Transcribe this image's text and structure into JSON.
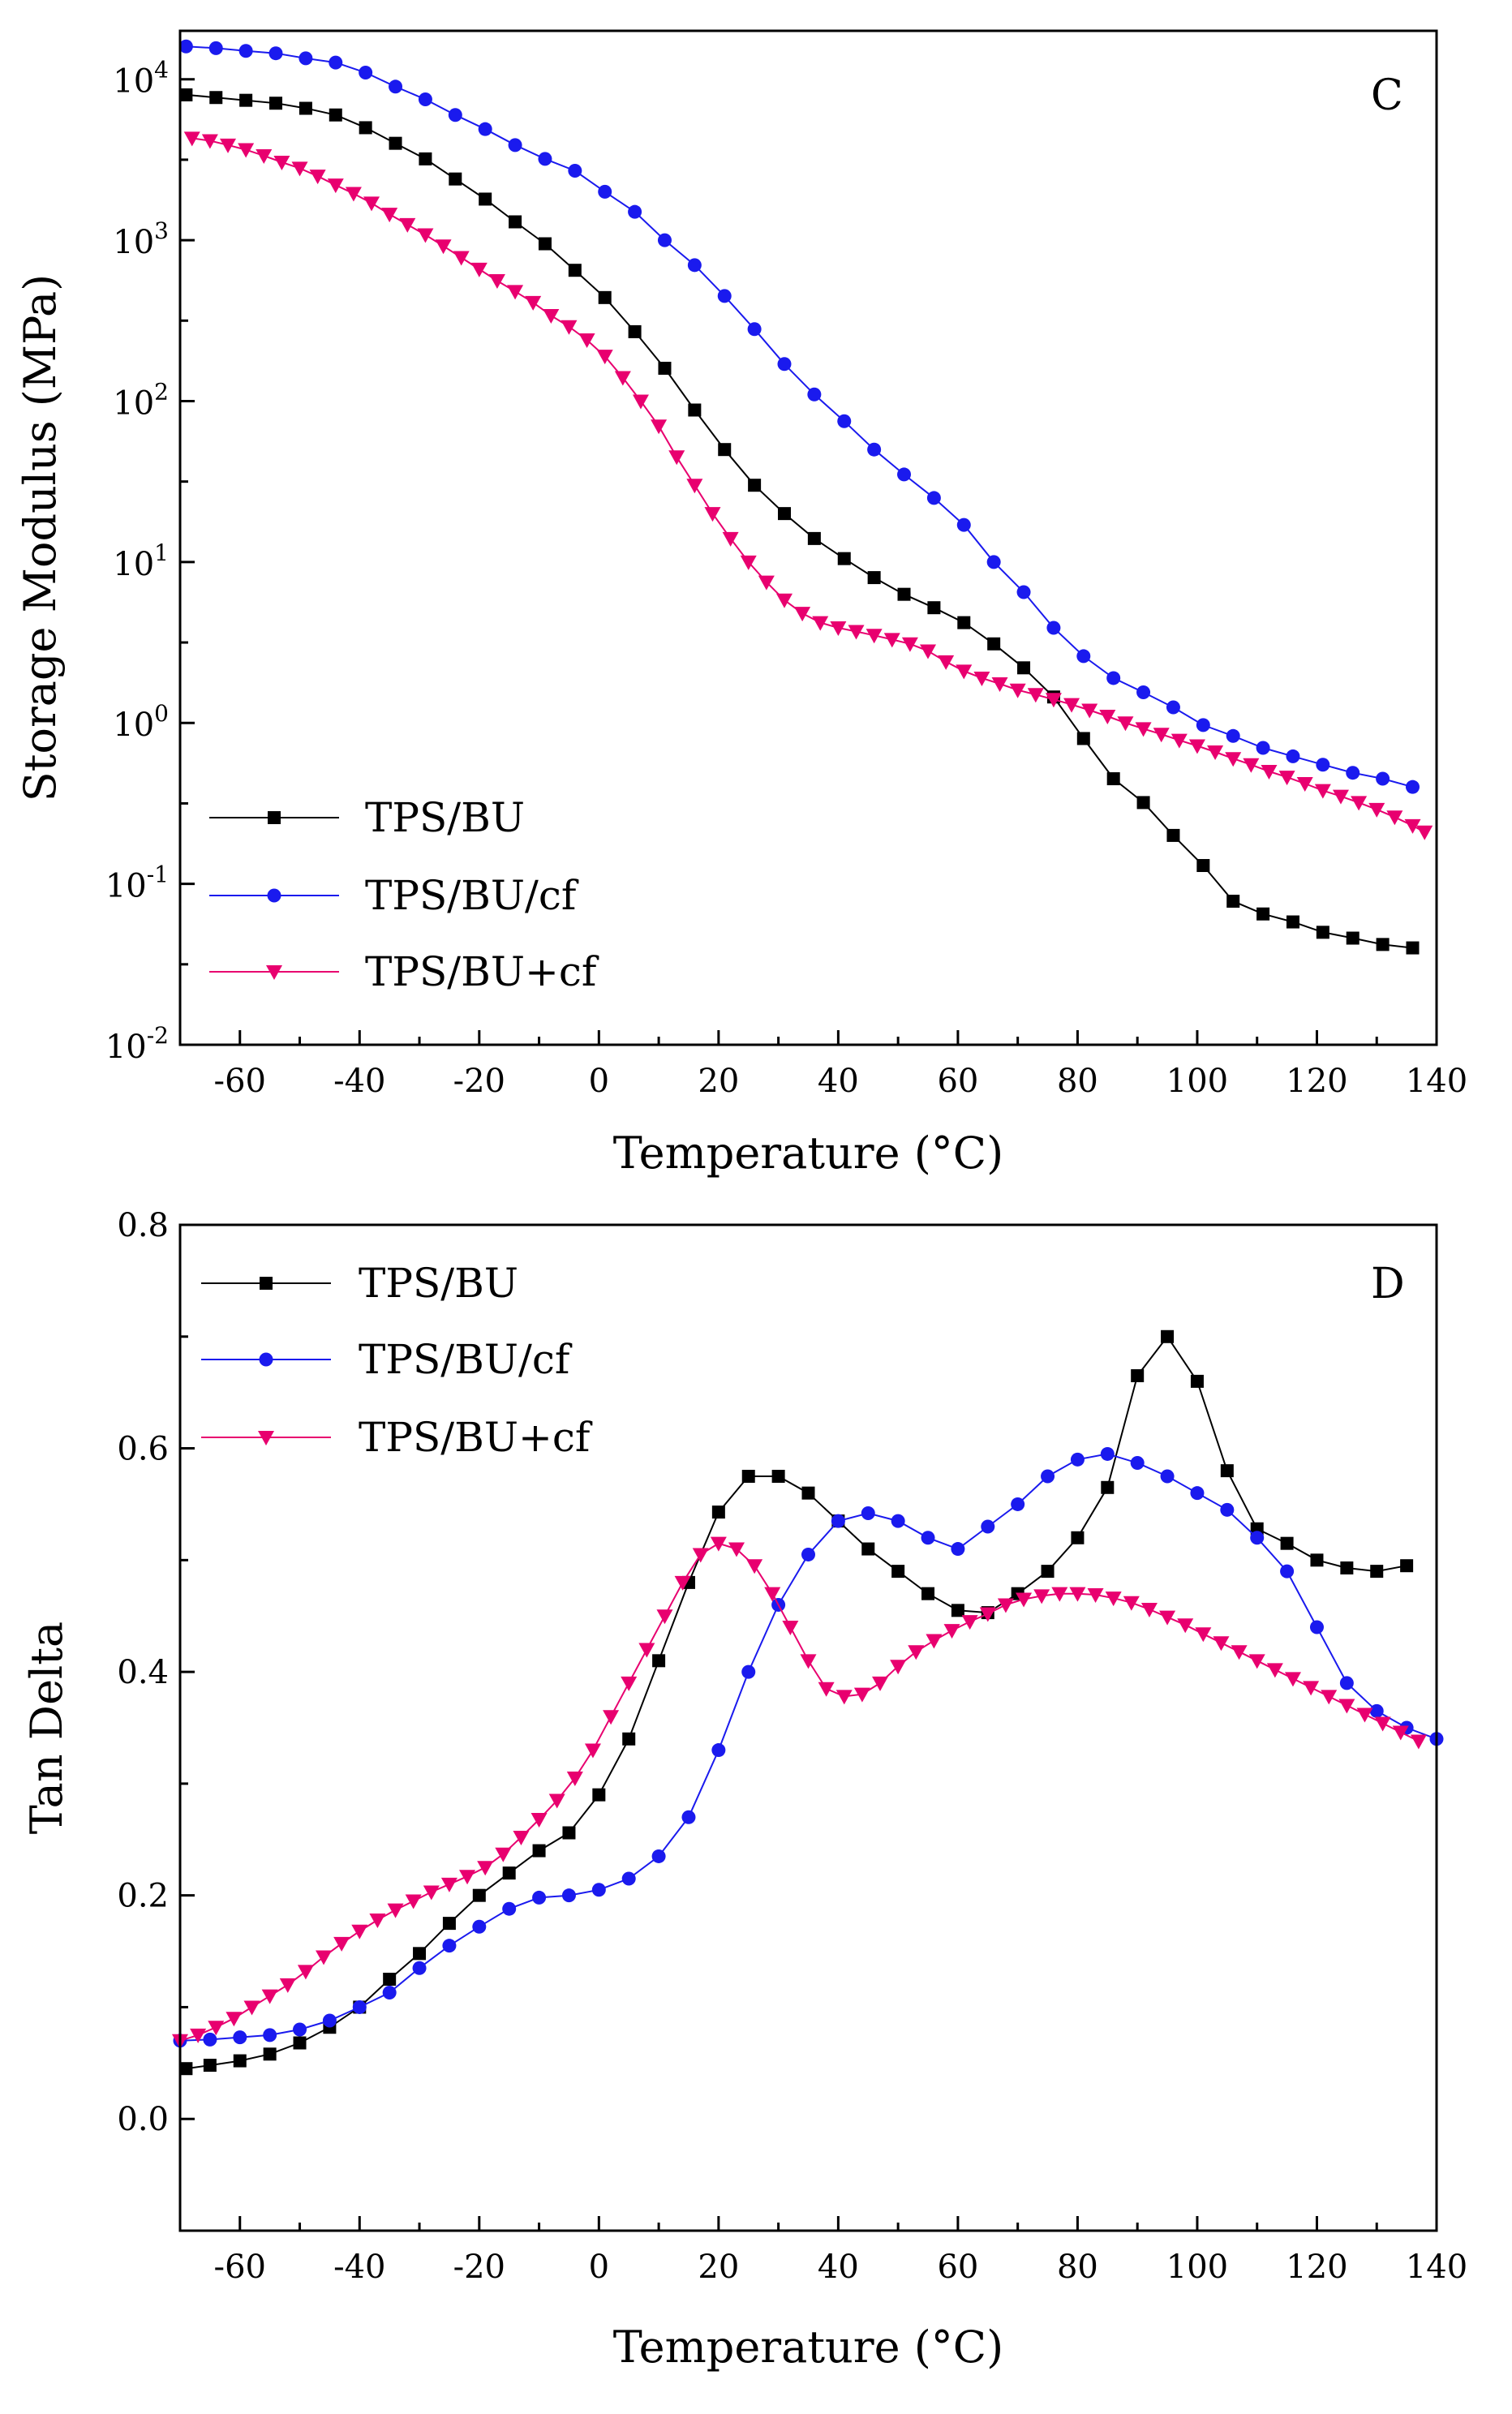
{
  "chart_data": [
    {
      "type": "line",
      "panel": "C",
      "xlabel": "Temperature (°C)",
      "ylabel": "Storage Modulus (MPa)",
      "xlim": [
        -70,
        140
      ],
      "ylim": [
        0.01,
        20000
      ],
      "yscale": "log",
      "xticks": [
        -60,
        -40,
        -20,
        0,
        20,
        40,
        60,
        80,
        100,
        120,
        140
      ],
      "yticks": [
        {
          "value": 0.01,
          "base": "10",
          "exp": "-2"
        },
        {
          "value": 0.1,
          "base": "10",
          "exp": "-1"
        },
        {
          "value": 1,
          "base": "10",
          "exp": "0"
        },
        {
          "value": 10,
          "base": "10",
          "exp": "1"
        },
        {
          "value": 100,
          "base": "10",
          "exp": "2"
        },
        {
          "value": 1000,
          "base": "10",
          "exp": "3"
        },
        {
          "value": 10000,
          "base": "10",
          "exp": "4"
        }
      ],
      "legend_position": "bottom-left",
      "series": [
        {
          "name": "TPS/BU",
          "color": "#000000",
          "marker": "square",
          "x": [
            -69,
            -64,
            -59,
            -54,
            -49,
            -44,
            -39,
            -34,
            -29,
            -24,
            -19,
            -14,
            -9,
            -4,
            1,
            6,
            11,
            16,
            21,
            26,
            31,
            36,
            41,
            46,
            51,
            56,
            61,
            66,
            71,
            76,
            81,
            86,
            91,
            96,
            101,
            106,
            111,
            116,
            121,
            126,
            131,
            136
          ],
          "y": [
            8000,
            7700,
            7400,
            7100,
            6600,
            6000,
            5000,
            4000,
            3200,
            2400,
            1800,
            1300,
            950,
            650,
            440,
            270,
            160,
            88,
            50,
            30,
            20,
            14,
            10.5,
            8,
            6.3,
            5.2,
            4.2,
            3.1,
            2.2,
            1.45,
            0.8,
            0.45,
            0.32,
            0.2,
            0.13,
            0.078,
            0.065,
            0.058,
            0.05,
            0.046,
            0.042,
            0.04
          ]
        },
        {
          "name": "TPS/BU/cf",
          "color": "#1a1aee",
          "marker": "circle",
          "x": [
            -69,
            -64,
            -59,
            -54,
            -49,
            -44,
            -39,
            -34,
            -29,
            -24,
            -19,
            -14,
            -9,
            -4,
            1,
            6,
            11,
            16,
            21,
            26,
            31,
            36,
            41,
            46,
            51,
            56,
            61,
            66,
            71,
            76,
            81,
            86,
            91,
            96,
            101,
            106,
            111,
            116,
            121,
            126,
            131,
            136
          ],
          "y": [
            16000,
            15600,
            15000,
            14500,
            13500,
            12700,
            11000,
            9000,
            7500,
            6000,
            4900,
            3900,
            3200,
            2700,
            2000,
            1500,
            1000,
            700,
            450,
            280,
            170,
            110,
            75,
            50,
            35,
            25,
            17,
            10,
            6.5,
            3.9,
            2.6,
            1.9,
            1.55,
            1.25,
            0.97,
            0.83,
            0.7,
            0.62,
            0.55,
            0.49,
            0.45,
            0.4
          ]
        },
        {
          "name": "TPS/BU+cf",
          "color": "#e8006f",
          "marker": "triangle-down",
          "x": [
            -68,
            -65,
            -62,
            -59,
            -56,
            -53,
            -50,
            -47,
            -44,
            -41,
            -38,
            -35,
            -32,
            -29,
            -26,
            -23,
            -20,
            -17,
            -14,
            -11,
            -8,
            -5,
            -2,
            1,
            4,
            7,
            10,
            13,
            16,
            19,
            22,
            25,
            28,
            31,
            34,
            37,
            40,
            43,
            46,
            49,
            52,
            55,
            58,
            61,
            64,
            67,
            70,
            73,
            76,
            79,
            82,
            85,
            88,
            91,
            94,
            97,
            100,
            103,
            106,
            109,
            112,
            115,
            118,
            121,
            124,
            127,
            130,
            133,
            136,
            138
          ],
          "y": [
            4300,
            4150,
            3900,
            3650,
            3350,
            3050,
            2800,
            2500,
            2200,
            1950,
            1700,
            1450,
            1250,
            1080,
            920,
            780,
            660,
            560,
            480,
            410,
            340,
            290,
            240,
            190,
            140,
            100,
            70,
            45,
            30,
            20,
            14,
            10,
            7.5,
            5.8,
            4.8,
            4.2,
            3.9,
            3.7,
            3.5,
            3.3,
            3.1,
            2.8,
            2.4,
            2.1,
            1.9,
            1.75,
            1.6,
            1.5,
            1.4,
            1.3,
            1.2,
            1.1,
            1.0,
            0.92,
            0.85,
            0.78,
            0.72,
            0.66,
            0.6,
            0.55,
            0.5,
            0.46,
            0.42,
            0.38,
            0.35,
            0.32,
            0.29,
            0.26,
            0.23,
            0.21
          ]
        }
      ]
    },
    {
      "type": "line",
      "panel": "D",
      "xlabel": "Temperature (°C)",
      "ylabel": "Tan Delta",
      "xlim": [
        -70,
        140
      ],
      "ylim": [
        -0.1,
        0.8
      ],
      "yscale": "linear",
      "xticks": [
        -60,
        -40,
        -20,
        0,
        20,
        40,
        60,
        80,
        100,
        120,
        140
      ],
      "yticks": [
        {
          "value": 0.0,
          "label": "0.0"
        },
        {
          "value": 0.2,
          "label": "0.2"
        },
        {
          "value": 0.4,
          "label": "0.4"
        },
        {
          "value": 0.6,
          "label": "0.6"
        },
        {
          "value": 0.8,
          "label": "0.8"
        }
      ],
      "legend_position": "top-left",
      "series": [
        {
          "name": "TPS/BU",
          "color": "#000000",
          "marker": "square",
          "x": [
            -69,
            -65,
            -60,
            -55,
            -50,
            -45,
            -40,
            -35,
            -30,
            -25,
            -20,
            -15,
            -10,
            -5,
            0,
            5,
            10,
            15,
            20,
            25,
            30,
            35,
            40,
            45,
            50,
            55,
            60,
            65,
            70,
            75,
            80,
            85,
            90,
            95,
            100,
            105,
            110,
            115,
            120,
            125,
            130,
            135
          ],
          "y": [
            0.045,
            0.048,
            0.052,
            0.058,
            0.068,
            0.082,
            0.1,
            0.125,
            0.148,
            0.175,
            0.2,
            0.22,
            0.24,
            0.256,
            0.29,
            0.34,
            0.41,
            0.48,
            0.543,
            0.575,
            0.575,
            0.56,
            0.535,
            0.51,
            0.49,
            0.47,
            0.455,
            0.453,
            0.47,
            0.49,
            0.52,
            0.565,
            0.665,
            0.7,
            0.66,
            0.58,
            0.528,
            0.515,
            0.5,
            0.493,
            0.49,
            0.495
          ]
        },
        {
          "name": "TPS/BU/cf",
          "color": "#1a1aee",
          "marker": "circle",
          "x": [
            -70,
            -65,
            -60,
            -55,
            -50,
            -45,
            -40,
            -35,
            -30,
            -25,
            -20,
            -15,
            -10,
            -5,
            0,
            5,
            10,
            15,
            20,
            25,
            30,
            35,
            40,
            45,
            50,
            55,
            60,
            65,
            70,
            75,
            80,
            85,
            90,
            95,
            100,
            105,
            110,
            115,
            120,
            125,
            130,
            135,
            140
          ],
          "y": [
            0.07,
            0.071,
            0.073,
            0.075,
            0.08,
            0.088,
            0.1,
            0.113,
            0.135,
            0.155,
            0.172,
            0.188,
            0.198,
            0.2,
            0.205,
            0.215,
            0.235,
            0.27,
            0.33,
            0.4,
            0.46,
            0.505,
            0.535,
            0.542,
            0.535,
            0.52,
            0.51,
            0.53,
            0.55,
            0.575,
            0.59,
            0.595,
            0.587,
            0.575,
            0.56,
            0.545,
            0.52,
            0.49,
            0.44,
            0.39,
            0.365,
            0.35,
            0.34
          ]
        },
        {
          "name": "TPS/BU+cf",
          "color": "#e8006f",
          "marker": "triangle-down",
          "x": [
            -70,
            -67,
            -64,
            -61,
            -58,
            -55,
            -52,
            -49,
            -46,
            -43,
            -40,
            -37,
            -34,
            -31,
            -28,
            -25,
            -22,
            -19,
            -16,
            -13,
            -10,
            -7,
            -4,
            -1,
            2,
            5,
            8,
            11,
            14,
            17,
            20,
            23,
            26,
            29,
            32,
            35,
            38,
            41,
            44,
            47,
            50,
            53,
            56,
            59,
            62,
            65,
            68,
            71,
            74,
            77,
            80,
            83,
            86,
            89,
            92,
            95,
            98,
            101,
            104,
            107,
            110,
            113,
            116,
            119,
            122,
            125,
            128,
            131,
            134,
            137
          ],
          "y": [
            0.07,
            0.075,
            0.082,
            0.09,
            0.1,
            0.11,
            0.12,
            0.132,
            0.145,
            0.157,
            0.168,
            0.178,
            0.187,
            0.195,
            0.203,
            0.21,
            0.217,
            0.225,
            0.237,
            0.252,
            0.268,
            0.285,
            0.305,
            0.33,
            0.36,
            0.39,
            0.42,
            0.45,
            0.48,
            0.505,
            0.515,
            0.51,
            0.495,
            0.47,
            0.44,
            0.41,
            0.385,
            0.378,
            0.38,
            0.39,
            0.405,
            0.418,
            0.428,
            0.437,
            0.445,
            0.452,
            0.46,
            0.465,
            0.468,
            0.47,
            0.47,
            0.469,
            0.466,
            0.462,
            0.456,
            0.449,
            0.442,
            0.434,
            0.426,
            0.418,
            0.41,
            0.402,
            0.394,
            0.386,
            0.378,
            0.37,
            0.362,
            0.354,
            0.346,
            0.338
          ]
        }
      ]
    }
  ]
}
